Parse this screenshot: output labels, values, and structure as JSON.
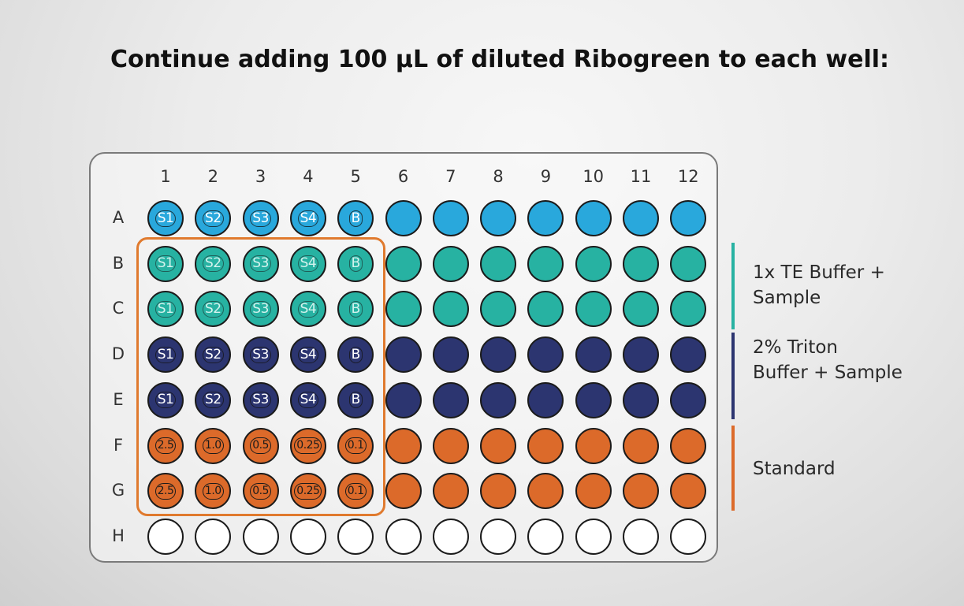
{
  "title": "Continue adding 100 µL of diluted Ribogreen to each well:",
  "columns": [
    "1",
    "2",
    "3",
    "4",
    "5",
    "6",
    "7",
    "8",
    "9",
    "10",
    "11",
    "12"
  ],
  "rows": [
    {
      "label": "A",
      "type": "blue",
      "wells": [
        "S1",
        "S2",
        "S3",
        "S4",
        "B",
        "",
        "",
        "",
        "",
        "",
        "",
        ""
      ]
    },
    {
      "label": "B",
      "type": "teal",
      "wells": [
        "S1",
        "S2",
        "S3",
        "S4",
        "B",
        "",
        "",
        "",
        "",
        "",
        "",
        ""
      ]
    },
    {
      "label": "C",
      "type": "teal",
      "wells": [
        "S1",
        "S2",
        "S3",
        "S4",
        "B",
        "",
        "",
        "",
        "",
        "",
        "",
        ""
      ]
    },
    {
      "label": "D",
      "type": "navy",
      "wells": [
        "S1",
        "S2",
        "S3",
        "S4",
        "B",
        "",
        "",
        "",
        "",
        "",
        "",
        ""
      ]
    },
    {
      "label": "E",
      "type": "navy",
      "wells": [
        "S1",
        "S2",
        "S3",
        "S4",
        "B",
        "",
        "",
        "",
        "",
        "",
        "",
        ""
      ]
    },
    {
      "label": "F",
      "type": "std",
      "wells": [
        "2.5",
        "1.0",
        "0.5",
        "0.25",
        "0.1",
        "",
        "",
        "",
        "",
        "",
        "",
        ""
      ]
    },
    {
      "label": "G",
      "type": "std",
      "wells": [
        "2.5",
        "1.0",
        "0.5",
        "0.25",
        "0.1",
        "",
        "",
        "",
        "",
        "",
        "",
        ""
      ]
    },
    {
      "label": "H",
      "type": "empty",
      "wells": [
        "",
        "",
        "",
        "",
        "",
        "",
        "",
        "",
        "",
        "",
        "",
        ""
      ]
    }
  ],
  "colors": {
    "blue": "#29a8dc",
    "teal": "#27b2a2",
    "navy": "#2c3570",
    "std": "#dc6a2a",
    "empty": "#ffffff",
    "highlight": "#e07a2e"
  },
  "legend": [
    {
      "text_lines": [
        "1x TE Buffer +",
        "Sample"
      ],
      "color": "#27b2a2"
    },
    {
      "text_lines": [
        "2% Triton",
        "Buffer + Sample"
      ],
      "color": "#2c3570"
    },
    {
      "text_lines": [
        "Standard"
      ],
      "color": "#dc6a2a"
    }
  ]
}
